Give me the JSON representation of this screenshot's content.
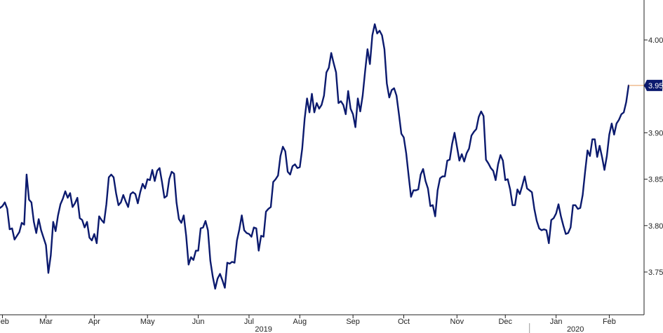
{
  "chart_data": {
    "type": "line",
    "title": "",
    "xlabel": "",
    "ylabel": "",
    "ylim": [
      3.7,
      4.04
    ],
    "y_axis_side": "right",
    "y_ticks": [
      {
        "value": 3.75,
        "label": "3.75"
      },
      {
        "value": 3.8,
        "label": "3.80"
      },
      {
        "value": 3.85,
        "label": "3.85"
      },
      {
        "value": 3.9,
        "label": "3.90"
      },
      {
        "value": 3.95,
        "label": "3.95"
      },
      {
        "value": 4.0,
        "label": "4.00"
      }
    ],
    "x_ticks": [
      {
        "label": "Feb",
        "index": 1
      },
      {
        "label": "Mar",
        "index": 19
      },
      {
        "label": "Apr",
        "index": 39
      },
      {
        "label": "May",
        "index": 61
      },
      {
        "label": "Jun",
        "index": 82
      },
      {
        "label": "Jul",
        "index": 103
      },
      {
        "label": "Aug",
        "index": 124
      },
      {
        "label": "Sep",
        "index": 146
      },
      {
        "label": "Oct",
        "index": 167
      },
      {
        "label": "Nov",
        "index": 189
      },
      {
        "label": "Dec",
        "index": 209
      },
      {
        "label": "Jan",
        "index": 230
      },
      {
        "label": "Feb",
        "index": 252
      }
    ],
    "year_labels": [
      {
        "label": "2019",
        "index": 109
      },
      {
        "label": "2020",
        "index": 238
      }
    ],
    "year_separator_index": 219,
    "last_value_label": "3.95",
    "line_color": "#0b1a6e",
    "last_marker_color": "#e89a5a",
    "grid": false,
    "series": [
      {
        "values": [
          3.819,
          3.821,
          3.825,
          3.818,
          3.796,
          3.797,
          3.785,
          3.789,
          3.793,
          3.803,
          3.801,
          3.855,
          3.828,
          3.825,
          3.804,
          3.792,
          3.807,
          3.795,
          3.787,
          3.779,
          3.749,
          3.768,
          3.804,
          3.794,
          3.811,
          3.823,
          3.829,
          3.837,
          3.83,
          3.835,
          3.82,
          3.824,
          3.83,
          3.808,
          3.806,
          3.798,
          3.804,
          3.787,
          3.784,
          3.791,
          3.781,
          3.81,
          3.806,
          3.803,
          3.823,
          3.852,
          3.855,
          3.852,
          3.835,
          3.822,
          3.825,
          3.833,
          3.826,
          3.82,
          3.834,
          3.836,
          3.834,
          3.824,
          3.836,
          3.845,
          3.84,
          3.85,
          3.849,
          3.86,
          3.848,
          3.859,
          3.862,
          3.847,
          3.83,
          3.832,
          3.85,
          3.858,
          3.856,
          3.825,
          3.807,
          3.803,
          3.811,
          3.789,
          3.758,
          3.766,
          3.763,
          3.773,
          3.773,
          3.797,
          3.798,
          3.805,
          3.795,
          3.762,
          3.745,
          3.732,
          3.743,
          3.748,
          3.741,
          3.733,
          3.76,
          3.759,
          3.761,
          3.76,
          3.784,
          3.796,
          3.811,
          3.795,
          3.792,
          3.791,
          3.788,
          3.798,
          3.797,
          3.773,
          3.789,
          3.788,
          3.815,
          3.818,
          3.82,
          3.847,
          3.85,
          3.854,
          3.875,
          3.885,
          3.88,
          3.858,
          3.855,
          3.864,
          3.866,
          3.862,
          3.863,
          3.883,
          3.915,
          3.937,
          3.922,
          3.942,
          3.922,
          3.932,
          3.926,
          3.93,
          3.94,
          3.965,
          3.97,
          3.986,
          3.975,
          3.965,
          3.932,
          3.934,
          3.93,
          3.92,
          3.945,
          3.926,
          3.92,
          3.906,
          3.937,
          3.923,
          3.94,
          3.966,
          3.99,
          3.974,
          4.005,
          4.017,
          4.007,
          4.01,
          4.005,
          3.99,
          3.953,
          3.938,
          3.946,
          3.948,
          3.94,
          3.92,
          3.899,
          3.895,
          3.878,
          3.854,
          3.831,
          3.838,
          3.838,
          3.839,
          3.855,
          3.861,
          3.848,
          3.84,
          3.821,
          3.822,
          3.81,
          3.838,
          3.851,
          3.853,
          3.853,
          3.87,
          3.871,
          3.888,
          3.9,
          3.885,
          3.87,
          3.877,
          3.869,
          3.878,
          3.883,
          3.897,
          3.901,
          3.904,
          3.917,
          3.923,
          3.918,
          3.871,
          3.867,
          3.862,
          3.859,
          3.849,
          3.866,
          3.876,
          3.87,
          3.849,
          3.85,
          3.839,
          3.822,
          3.822,
          3.839,
          3.834,
          3.843,
          3.853,
          3.84,
          3.838,
          3.836,
          3.818,
          3.805,
          3.797,
          3.795,
          3.796,
          3.795,
          3.781,
          3.806,
          3.808,
          3.813,
          3.823,
          3.81,
          3.8,
          3.791,
          3.792,
          3.798,
          3.822,
          3.822,
          3.818,
          3.819,
          3.833,
          3.858,
          3.881,
          3.875,
          3.893,
          3.893,
          3.874,
          3.886,
          3.874,
          3.86,
          3.875,
          3.898,
          3.91,
          3.898,
          3.91,
          3.914,
          3.92,
          3.922,
          3.933,
          3.951
        ]
      }
    ]
  }
}
